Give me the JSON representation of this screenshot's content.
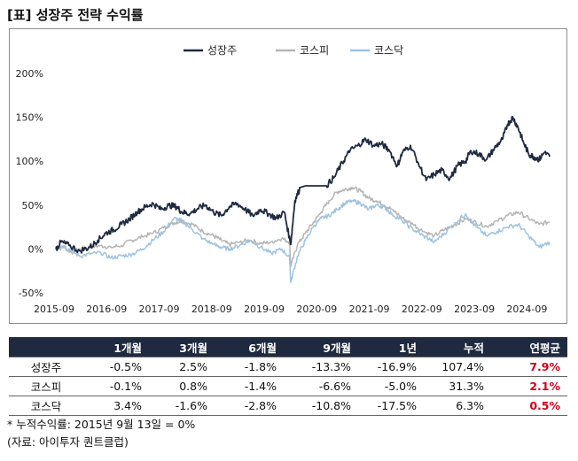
{
  "title": "[표] 성장주 전략 수익률",
  "chart_data": {
    "type": "line",
    "x_ticks": [
      "2015-09",
      "2016-09",
      "2017-09",
      "2018-09",
      "2019-09",
      "2020-09",
      "2021-09",
      "2022-09",
      "2023-09",
      "2024-09"
    ],
    "y_ticks": [
      "200%",
      "150%",
      "100%",
      "50%",
      "0%",
      "-50%"
    ],
    "ylim": [
      -50,
      200
    ],
    "xlim": [
      2015.7,
      2025.15
    ],
    "series": [
      {
        "name": "성장주",
        "color": "#1f2a40",
        "x": [
          2015.7,
          2015.8,
          2015.95,
          2016.15,
          2016.35,
          2016.5,
          2016.65,
          2016.8,
          2016.95,
          2017.1,
          2017.25,
          2017.4,
          2017.55,
          2017.7,
          2017.85,
          2018.0,
          2018.1,
          2018.25,
          2018.4,
          2018.55,
          2018.7,
          2018.85,
          2019.0,
          2019.15,
          2019.3,
          2019.45,
          2019.6,
          2019.75,
          2019.9,
          2020.05,
          2020.17,
          2020.25,
          2020.35,
          2020.45,
          2020.55,
          2020.7,
          2020.85,
          2021.0,
          2021.15,
          2021.3,
          2021.45,
          2021.6,
          2021.75,
          2021.9,
          2022.05,
          2022.2,
          2022.3,
          2022.45,
          2022.6,
          2022.75,
          2022.9,
          2023.05,
          2023.2,
          2023.35,
          2023.5,
          2023.6,
          2023.75,
          2023.9,
          2024.05,
          2024.2,
          2024.3,
          2024.4,
          2024.5,
          2024.6,
          2024.7,
          2024.8,
          2024.9,
          2025.0,
          2025.1
        ],
        "values": [
          0,
          8,
          4,
          -2,
          2,
          10,
          18,
          22,
          28,
          34,
          42,
          48,
          52,
          45,
          50,
          48,
          42,
          40,
          46,
          50,
          42,
          38,
          48,
          52,
          45,
          38,
          45,
          40,
          35,
          42,
          5,
          55,
          70,
          72,
          72,
          72,
          72,
          82,
          98,
          112,
          118,
          125,
          118,
          120,
          112,
          95,
          110,
          118,
          98,
          78,
          85,
          90,
          80,
          95,
          100,
          112,
          108,
          102,
          115,
          125,
          142,
          150,
          138,
          122,
          108,
          105,
          102,
          110,
          105
        ]
      },
      {
        "name": "코스피",
        "color": "#b5b5b5",
        "x": [
          2015.7,
          2015.85,
          2016.0,
          2016.15,
          2016.35,
          2016.55,
          2016.75,
          2016.95,
          2017.15,
          2017.35,
          2017.55,
          2017.75,
          2017.95,
          2018.1,
          2018.3,
          2018.5,
          2018.7,
          2018.85,
          2019.0,
          2019.2,
          2019.4,
          2019.6,
          2019.8,
          2020.0,
          2020.15,
          2020.17,
          2020.3,
          2020.45,
          2020.6,
          2020.75,
          2020.9,
          2021.05,
          2021.2,
          2021.35,
          2021.5,
          2021.65,
          2021.8,
          2021.95,
          2022.1,
          2022.3,
          2022.5,
          2022.7,
          2022.9,
          2023.1,
          2023.3,
          2023.5,
          2023.7,
          2023.9,
          2024.1,
          2024.3,
          2024.5,
          2024.7,
          2024.9,
          2025.1
        ],
        "values": [
          0,
          2,
          -4,
          0,
          2,
          4,
          2,
          4,
          10,
          14,
          18,
          24,
          30,
          32,
          28,
          20,
          15,
          10,
          5,
          8,
          10,
          6,
          8,
          12,
          8,
          -20,
          5,
          18,
          30,
          42,
          55,
          65,
          68,
          70,
          66,
          58,
          55,
          50,
          45,
          35,
          28,
          20,
          15,
          22,
          28,
          34,
          30,
          26,
          32,
          38,
          42,
          35,
          28,
          31
        ]
      },
      {
        "name": "코스닥",
        "color": "#9ec3e0",
        "x": [
          2015.7,
          2015.85,
          2016.0,
          2016.15,
          2016.35,
          2016.55,
          2016.75,
          2016.95,
          2017.15,
          2017.35,
          2017.55,
          2017.75,
          2017.95,
          2018.1,
          2018.3,
          2018.5,
          2018.7,
          2018.85,
          2019.0,
          2019.2,
          2019.4,
          2019.6,
          2019.8,
          2020.0,
          2020.15,
          2020.17,
          2020.3,
          2020.45,
          2020.6,
          2020.75,
          2020.9,
          2021.05,
          2021.2,
          2021.35,
          2021.5,
          2021.65,
          2021.8,
          2021.95,
          2022.1,
          2022.3,
          2022.5,
          2022.7,
          2022.9,
          2023.1,
          2023.3,
          2023.5,
          2023.7,
          2023.9,
          2024.1,
          2024.3,
          2024.5,
          2024.7,
          2024.9,
          2025.1
        ],
        "values": [
          0,
          4,
          -2,
          -8,
          -6,
          -4,
          -10,
          -8,
          -6,
          0,
          10,
          20,
          35,
          32,
          22,
          12,
          5,
          2,
          0,
          4,
          10,
          2,
          -5,
          0,
          -10,
          -38,
          -8,
          10,
          25,
          35,
          38,
          45,
          52,
          55,
          52,
          45,
          50,
          48,
          40,
          32,
          22,
          15,
          8,
          18,
          30,
          40,
          25,
          15,
          20,
          25,
          28,
          15,
          2,
          8
        ]
      }
    ]
  },
  "table": {
    "headers": [
      "",
      "1개월",
      "3개월",
      "6개월",
      "9개월",
      "1년",
      "누적",
      "연평균"
    ],
    "rows": [
      {
        "name": "성장주",
        "values": [
          "-0.5%",
          "2.5%",
          "-1.8%",
          "-13.3%",
          "-16.9%",
          "107.4%"
        ],
        "annual": "7.9%"
      },
      {
        "name": "코스피",
        "values": [
          "-0.1%",
          "0.8%",
          "-1.4%",
          "-6.6%",
          "-5.0%",
          "31.3%"
        ],
        "annual": "2.1%"
      },
      {
        "name": "코스닥",
        "values": [
          "3.4%",
          "-1.6%",
          "-2.8%",
          "-10.8%",
          "-17.5%",
          "6.3%"
        ],
        "annual": "0.5%"
      }
    ]
  },
  "footnote": "* 누적수익률: 2015년 9월 13일 = 0%",
  "source": "(자료: 아이투자 퀀트클럽)"
}
